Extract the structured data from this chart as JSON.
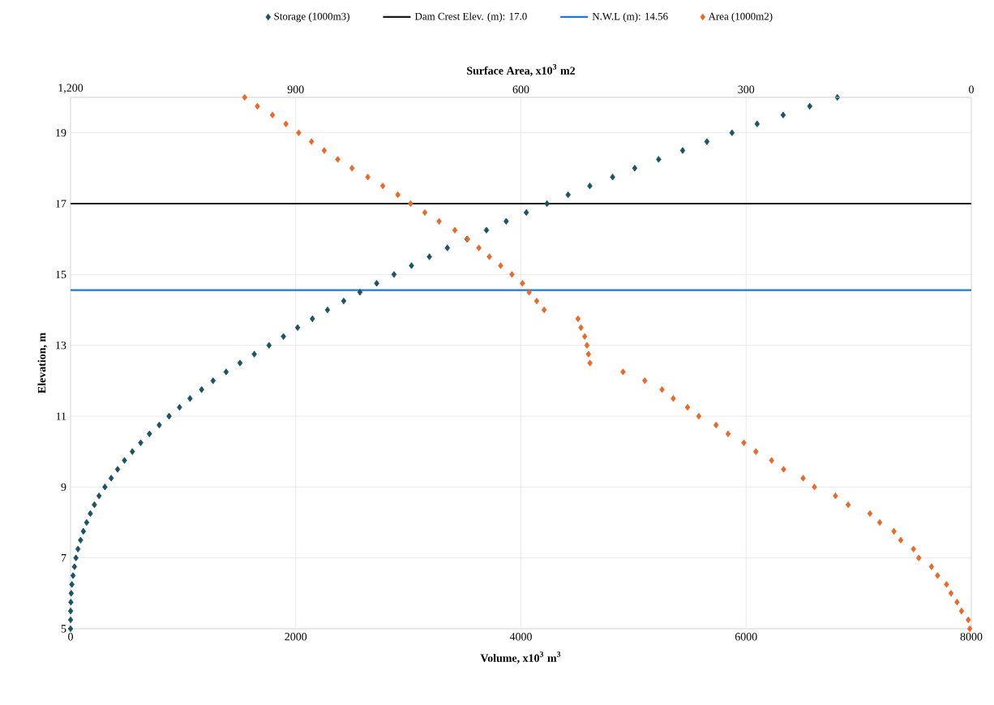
{
  "chart_data": {
    "type": "scatter",
    "xlabel": "Volume, x10$^{3}$ m$^{3}$",
    "x2label": "Surface Area, x10$^{3}$ m2",
    "ylabel": "Elevation, m",
    "xlim": [
      0,
      8000
    ],
    "xticks": [
      0,
      2000,
      4000,
      6000,
      8000
    ],
    "x2lim": [
      1200,
      0
    ],
    "x2ticks": [
      {
        "value": 1200,
        "label": "1,200"
      },
      900,
      600,
      300,
      0
    ],
    "ylim": [
      5,
      20
    ],
    "yticks": [
      5,
      7,
      9,
      11,
      13,
      15,
      17,
      19
    ],
    "grid": true,
    "legend": "top",
    "marker": "diamond",
    "series": [
      {
        "name": "Storage (1000m3)",
        "color": "#1b5366",
        "x": [
          0,
          0.5,
          1,
          3,
          6,
          12,
          22,
          35,
          48,
          66,
          89,
          114,
          143,
          176,
          212,
          253,
          305,
          361,
          418,
          479,
          549,
          623,
          701,
          788,
          875,
          968,
          1061,
          1164,
          1266,
          1382,
          1505,
          1632,
          1763,
          1891,
          2017,
          2148,
          2282,
          2426,
          2570,
          2719,
          2873,
          3028,
          3187,
          3347,
          3521,
          3694,
          3869,
          4048,
          4232,
          4419,
          4612,
          4814,
          5011,
          5223,
          5436,
          5652,
          5875,
          6098,
          6329,
          6565,
          6810
        ],
        "values": [
          5,
          5.25,
          5.5,
          5.75,
          6,
          6.25,
          6.5,
          6.75,
          7,
          7.25,
          7.5,
          7.75,
          8,
          8.25,
          8.5,
          8.75,
          9,
          9.25,
          9.5,
          9.75,
          10,
          10.25,
          10.5,
          10.75,
          11,
          11.25,
          11.5,
          11.75,
          12,
          12.25,
          12.5,
          12.75,
          13,
          13.25,
          13.5,
          13.75,
          14,
          14.25,
          14.5,
          14.75,
          15,
          15.25,
          15.5,
          15.75,
          16,
          16.25,
          16.5,
          16.75,
          17,
          17.25,
          17.5,
          17.75,
          18,
          18.25,
          18.5,
          18.75,
          19,
          19.25,
          19.5,
          19.75,
          20
        ]
      },
      {
        "name": "Area (1000m2)",
        "color": "#e8692a",
        "axis": "x2",
        "x": [
          2,
          4,
          13,
          19,
          27,
          33,
          45,
          53,
          70,
          77,
          94,
          103,
          122,
          135,
          164,
          181,
          209,
          224,
          250,
          266,
          287,
          303,
          324,
          340,
          363,
          378,
          397,
          412,
          435,
          464,
          508,
          510,
          512,
          515,
          520,
          524,
          569,
          579,
          589,
          598,
          612,
          627,
          642,
          656,
          671,
          688,
          709,
          728,
          747,
          764,
          784,
          804,
          825,
          844,
          862,
          879,
          896,
          913,
          931,
          951,
          968
        ],
        "values": [
          5,
          5.25,
          5.5,
          5.75,
          6,
          6.25,
          6.5,
          6.75,
          7,
          7.25,
          7.5,
          7.75,
          8,
          8.25,
          8.5,
          8.75,
          9,
          9.25,
          9.5,
          9.75,
          10,
          10.25,
          10.5,
          10.75,
          11,
          11.25,
          11.5,
          11.75,
          12,
          12.25,
          12.5,
          12.75,
          13,
          13.25,
          13.5,
          13.75,
          14,
          14.25,
          14.5,
          14.75,
          15,
          15.25,
          15.5,
          15.75,
          16,
          16.25,
          16.5,
          16.75,
          17,
          17.25,
          17.5,
          17.75,
          18,
          18.25,
          18.5,
          18.75,
          19,
          19.25,
          19.5,
          19.75,
          20
        ]
      }
    ],
    "ref_lines": [
      {
        "axis": "y",
        "value": 17.0,
        "label": "Dam Crest Elev. (m): 17.0",
        "color": "#1a1a1a"
      },
      {
        "axis": "y",
        "value": 14.56,
        "label": "N.W.L (m): 14.56",
        "color": "#1f78d1"
      }
    ]
  }
}
